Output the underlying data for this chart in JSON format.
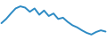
{
  "x": [
    0,
    1,
    2,
    3,
    4,
    5,
    6,
    7,
    8,
    9,
    10,
    11,
    12,
    13,
    14,
    15,
    16,
    17,
    18,
    19,
    20,
    21,
    22
  ],
  "y": [
    5.5,
    6.5,
    7.8,
    9.0,
    9.5,
    9.2,
    8.2,
    9.0,
    7.5,
    8.5,
    7.2,
    7.8,
    6.5,
    6.8,
    5.8,
    5.0,
    4.5,
    3.8,
    3.2,
    2.8,
    3.4,
    3.8,
    3.5
  ],
  "line_color": "#2e8bc4",
  "linewidth": 1.4,
  "background_color": "#ffffff",
  "ylim": [
    1.5,
    11.0
  ],
  "xlim": [
    -0.3,
    22.3
  ]
}
